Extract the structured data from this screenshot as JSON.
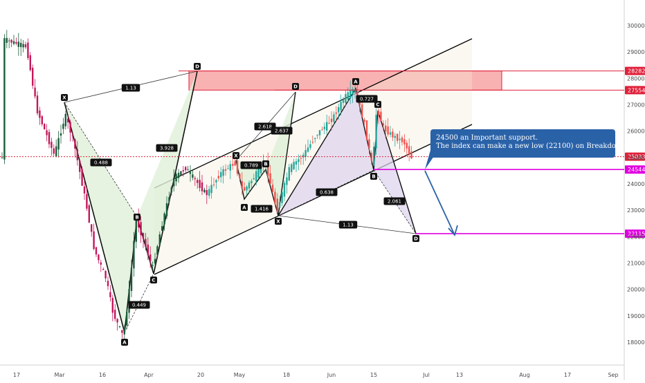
{
  "chart_data": {
    "type": "candlestick",
    "title": "",
    "xlabel": "",
    "ylabel": "",
    "ylim": [
      17400,
      30900
    ],
    "y_ticks": [
      "30000",
      "29000",
      "28000",
      "27000",
      "26000",
      "25000",
      "24000",
      "23000",
      "22000",
      "21000",
      "20000",
      "19000",
      "18000"
    ],
    "x_ticks": [
      "17",
      "Mar",
      "16",
      "Apr",
      "20",
      "May",
      "18",
      "Jun",
      "15",
      "Jul",
      "13",
      "Aug",
      "17",
      "Sep"
    ],
    "price_levels": [
      {
        "value": 28282,
        "label": "28282",
        "color": "#e0203a"
      },
      {
        "value": 27554,
        "label": "27554",
        "color": "#e0203a"
      },
      {
        "value": 25033,
        "label": "25033",
        "color": "#e0203a"
      },
      {
        "value": 24544,
        "label": "24544",
        "color": "#e000e0"
      },
      {
        "value": 22115,
        "label": "22115",
        "color": "#e000e0"
      }
    ],
    "resistance_zone": {
      "from": 27554,
      "to": 28282
    },
    "pattern_points": [
      "X",
      "A",
      "B",
      "C",
      "D",
      "X",
      "A",
      "B",
      "D",
      "X",
      "A",
      "B",
      "C",
      "D"
    ],
    "fib_ratios": [
      "1.13",
      "0.488",
      "3.928",
      "0.449",
      "0.789",
      "1.416",
      "2.618",
      "2.637",
      "0.727",
      "0.638",
      "2.061",
      "1.13"
    ],
    "annotation": {
      "line1": "24500 an Important support.",
      "line2": "The index can make a new low (22100) on Breakdown."
    },
    "colors": {
      "up": "#26a69a",
      "down": "#ef5350",
      "dark_up": "#1a5c3a",
      "dark_down": "#c2185b",
      "zone": "#f8a5a5",
      "note": "#2a62a8",
      "magenta": "#e000e0"
    }
  }
}
